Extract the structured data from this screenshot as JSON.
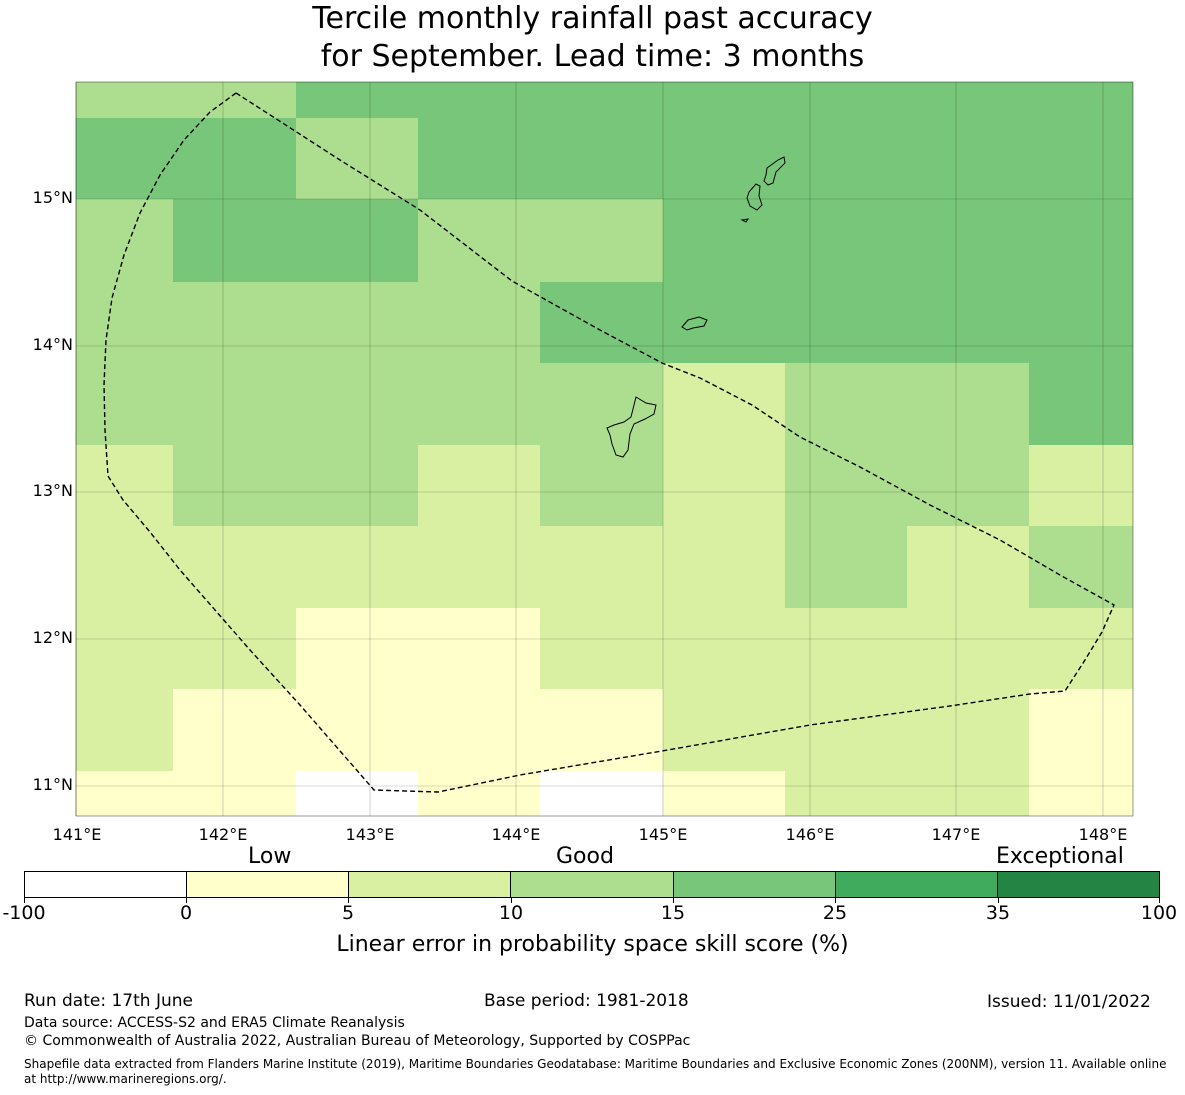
{
  "title": {
    "line1": "Tercile monthly rainfall past accuracy",
    "line2": "for September. Lead time: 3 months"
  },
  "map": {
    "lat_labels": [
      "15°N",
      "14°N",
      "13°N",
      "12°N",
      "11°N"
    ],
    "lon_labels": [
      "141°E",
      "142°E",
      "143°E",
      "144°E",
      "145°E",
      "146°E",
      "147°E",
      "148°E"
    ],
    "colors": {
      "c_neg": "#ffffff",
      "c0": "#ffffcc",
      "c5": "#d9f0a3",
      "c10": "#addd8e",
      "c15": "#78c679",
      "c25": "#41ab5d",
      "c35": "#238443"
    },
    "cells": [
      [
        "c10",
        "c10",
        "c15",
        "c15",
        "c15",
        "c15",
        "c15",
        "c15",
        "c15"
      ],
      [
        "c15",
        "c15",
        "c10",
        "c15",
        "c15",
        "c15",
        "c15",
        "c15",
        "c15"
      ],
      [
        "c10",
        "c15",
        "c15",
        "c10",
        "c10",
        "c15",
        "c15",
        "c15",
        "c15"
      ],
      [
        "c10",
        "c10",
        "c10",
        "c10",
        "c15",
        "c15",
        "c15",
        "c15",
        "c15"
      ],
      [
        "c10",
        "c10",
        "c10",
        "c10",
        "c10",
        "c5",
        "c10",
        "c10",
        "c15"
      ],
      [
        "c5",
        "c10",
        "c10",
        "c5",
        "c10",
        "c5",
        "c10",
        "c10",
        "c5"
      ],
      [
        "c5",
        "c5",
        "c5",
        "c5",
        "c5",
        "c5",
        "c10",
        "c5",
        "c10"
      ],
      [
        "c5",
        "c5",
        "c0",
        "c0",
        "c5",
        "c5",
        "c5",
        "c5",
        "c5"
      ],
      [
        "c5",
        "c0",
        "c0",
        "c0",
        "c0",
        "c5",
        "c5",
        "c5",
        "c0"
      ],
      [
        "c0",
        "c0",
        "c_neg",
        "c0",
        "c_neg",
        "c0",
        "c5",
        "c5",
        "c0"
      ]
    ]
  },
  "legend": {
    "categories": [
      "Low",
      "Good",
      "Exceptional"
    ],
    "ticks": [
      "-100",
      "0",
      "5",
      "10",
      "15",
      "25",
      "35",
      "100"
    ],
    "swatch_colors": [
      "#ffffff",
      "#ffffcc",
      "#d9f0a3",
      "#addd8e",
      "#78c679",
      "#41ab5d",
      "#238443"
    ],
    "label": "Linear error in probability space skill score (%)"
  },
  "footer": {
    "run_date": "Run date: 17th June",
    "base_period": "Base period: 1981-2018",
    "issued": "Issued: 11/01/2022",
    "data_source": "Data source: ACCESS-S2 and ERA5 Climate Reanalysis",
    "copyright": "© Commonwealth of Australia 2022, Australian Bureau of Meteorology, Supported by COSPPac",
    "shapefile": "Shapefile data extracted from Flanders Marine Institute (2019), Maritime Boundaries Geodatabase: Maritime Boundaries and Exclusive Economic Zones (200NM), version 11. Available online at http://www.marineregions.org/."
  }
}
